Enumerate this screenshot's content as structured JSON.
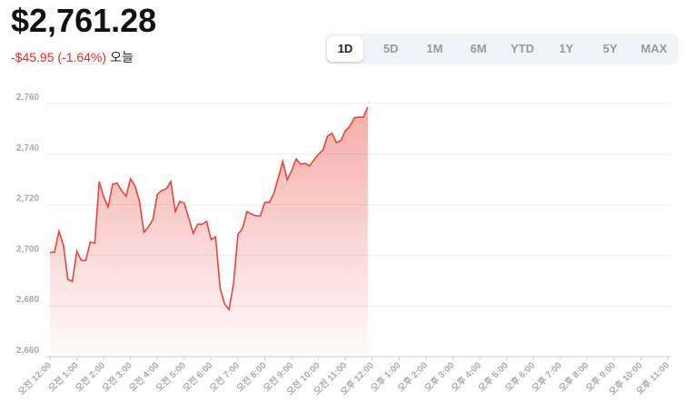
{
  "header": {
    "price": "$2,761.28",
    "change": "-$45.95 (-1.64%)",
    "period": "오늘"
  },
  "range_buttons": {
    "labels": [
      "1D",
      "5D",
      "1M",
      "6M",
      "YTD",
      "1Y",
      "5Y",
      "MAX"
    ],
    "selected": 0
  },
  "chart_data": {
    "type": "area",
    "color": "#e8453c",
    "grid": true,
    "x": [
      0,
      10,
      20,
      30,
      40,
      50,
      60,
      70,
      80,
      90,
      100,
      110,
      120,
      130,
      140,
      150,
      160,
      170,
      180,
      190,
      200,
      210,
      220,
      230,
      240,
      250,
      260,
      270,
      280,
      290,
      300,
      310,
      320,
      330,
      340,
      350,
      360,
      370,
      380,
      390,
      400,
      410,
      420,
      430,
      440,
      450,
      460,
      470,
      480,
      490,
      500,
      510,
      520,
      530,
      540,
      550,
      560,
      570,
      580,
      590,
      600,
      610,
      620,
      630,
      640,
      650,
      660,
      670,
      680,
      690,
      700,
      710
    ],
    "values": [
      2701.2,
      2701.2,
      2709.5,
      2704.1,
      2690.5,
      2689.7,
      2701.6,
      2698.0,
      2698.0,
      2705.2,
      2704.8,
      2729.2,
      2723.1,
      2719.1,
      2728.1,
      2728.5,
      2725.6,
      2723.4,
      2730.3,
      2727.4,
      2721.3,
      2709.1,
      2711.3,
      2714.1,
      2724.2,
      2725.6,
      2726.3,
      2729.2,
      2717.3,
      2721.3,
      2720.6,
      2714.8,
      2708.7,
      2712.3,
      2712.3,
      2713.4,
      2706.2,
      2707.3,
      2687.2,
      2680.8,
      2678.6,
      2688.7,
      2708.4,
      2710.5,
      2717.3,
      2716.3,
      2715.6,
      2715.6,
      2720.9,
      2720.9,
      2724.5,
      2730.6,
      2737.1,
      2729.9,
      2733.5,
      2738.1,
      2736.0,
      2736.3,
      2735.3,
      2737.8,
      2739.9,
      2741.7,
      2747.1,
      2748.2,
      2744.6,
      2745.3,
      2749.2,
      2751.0,
      2754.3,
      2754.6,
      2754.6,
      2758.6
    ],
    "xlim": [
      0,
      1380
    ],
    "xticks": [
      {
        "value": 0,
        "label": "오전 12:00"
      },
      {
        "value": 60,
        "label": "오전 1:00"
      },
      {
        "value": 120,
        "label": "오전 2:00"
      },
      {
        "value": 180,
        "label": "오전 3:00"
      },
      {
        "value": 240,
        "label": "오전 4:00"
      },
      {
        "value": 300,
        "label": "오전 5:00"
      },
      {
        "value": 360,
        "label": "오전 6:00"
      },
      {
        "value": 420,
        "label": "오전 7:00"
      },
      {
        "value": 480,
        "label": "오전 8:00"
      },
      {
        "value": 540,
        "label": "오전 9:00"
      },
      {
        "value": 600,
        "label": "오전 10:00"
      },
      {
        "value": 660,
        "label": "오전 11:00"
      },
      {
        "value": 720,
        "label": "오후 12:00"
      },
      {
        "value": 780,
        "label": "오후 1:00"
      },
      {
        "value": 840,
        "label": "오후 2:00"
      },
      {
        "value": 900,
        "label": "오후 3:00"
      },
      {
        "value": 960,
        "label": "오후 4:00"
      },
      {
        "value": 1020,
        "label": "오후 5:00"
      },
      {
        "value": 1080,
        "label": "오후 6:00"
      },
      {
        "value": 1140,
        "label": "오후 7:00"
      },
      {
        "value": 1200,
        "label": "오후 8:00"
      },
      {
        "value": 1260,
        "label": "오후 9:00"
      },
      {
        "value": 1320,
        "label": "오후 10:00"
      },
      {
        "value": 1380,
        "label": "오후 11:00"
      }
    ],
    "ylim": [
      2660,
      2760
    ],
    "yticks": [
      {
        "value": 2660,
        "label": "2,660"
      },
      {
        "value": 2680,
        "label": "2,680"
      },
      {
        "value": 2700,
        "label": "2,700"
      },
      {
        "value": 2720,
        "label": "2,720"
      },
      {
        "value": 2740,
        "label": "2,740"
      },
      {
        "value": 2760,
        "label": "2,760"
      }
    ]
  }
}
